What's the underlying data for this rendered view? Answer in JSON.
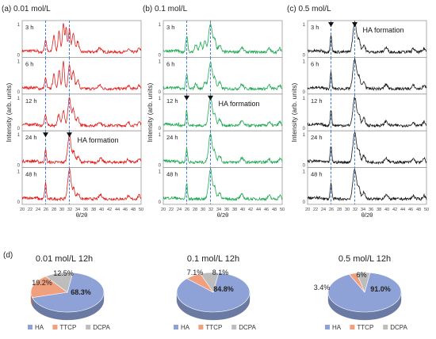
{
  "chart_data": [
    {
      "type": "line",
      "panel_label": "(a) 0.01 mol/L",
      "color": "#e02020",
      "xlabel": "θ/2θ",
      "ylabel": "Intensity (arb. units)",
      "xlim": [
        20,
        50
      ],
      "x_ticks": [
        "20",
        "22",
        "24",
        "26",
        "28",
        "30",
        "32",
        "34",
        "36",
        "38",
        "40",
        "42",
        "44",
        "46",
        "48",
        "50"
      ],
      "y_ticks": [
        "0",
        "1"
      ],
      "ref_lines": [
        25.9,
        31.9
      ],
      "traces": [
        {
          "label": "3 h",
          "peaks": [
            [
              25.9,
              0.35,
              0.25
            ],
            [
              28.0,
              0.45,
              0.3
            ],
            [
              29.3,
              0.6,
              0.25
            ],
            [
              30.4,
              0.85,
              0.25
            ],
            [
              31.1,
              0.7,
              0.2
            ],
            [
              31.9,
              0.65,
              0.25
            ],
            [
              32.9,
              0.55,
              0.3
            ],
            [
              34.0,
              0.3,
              0.3
            ],
            [
              39.5,
              0.12,
              0.4
            ],
            [
              46.8,
              0.08,
              0.3
            ],
            [
              49.5,
              0.1,
              0.3
            ]
          ]
        },
        {
          "label": "6 h",
          "peaks": [
            [
              25.9,
              0.3,
              0.25
            ],
            [
              28.0,
              0.4,
              0.3
            ],
            [
              29.3,
              0.55,
              0.25
            ],
            [
              30.4,
              0.75,
              0.25
            ],
            [
              31.9,
              0.7,
              0.3
            ],
            [
              32.9,
              0.5,
              0.3
            ],
            [
              34.0,
              0.25,
              0.3
            ],
            [
              39.5,
              0.1,
              0.4
            ],
            [
              46.8,
              0.08,
              0.3
            ],
            [
              49.5,
              0.1,
              0.3
            ]
          ]
        },
        {
          "label": "12 h",
          "peaks": [
            [
              25.9,
              0.3,
              0.25
            ],
            [
              29.2,
              0.3,
              0.3
            ],
            [
              30.4,
              0.45,
              0.3
            ],
            [
              31.9,
              0.8,
              0.35
            ],
            [
              32.9,
              0.45,
              0.3
            ],
            [
              34.0,
              0.22,
              0.35
            ],
            [
              39.5,
              0.1,
              0.4
            ],
            [
              46.8,
              0.08,
              0.3
            ],
            [
              49.5,
              0.1,
              0.3
            ]
          ]
        },
        {
          "label": "24 h",
          "peaks": [
            [
              25.9,
              0.35,
              0.2
            ],
            [
              31.9,
              0.8,
              0.4
            ],
            [
              33.0,
              0.3,
              0.3
            ],
            [
              34.1,
              0.15,
              0.35
            ],
            [
              39.8,
              0.1,
              0.4
            ],
            [
              46.7,
              0.08,
              0.3
            ],
            [
              49.5,
              0.09,
              0.3
            ]
          ]
        },
        {
          "label": "48 h",
          "peaks": [
            [
              25.9,
              0.45,
              0.2
            ],
            [
              31.9,
              0.85,
              0.4
            ],
            [
              33.0,
              0.3,
              0.3
            ],
            [
              34.1,
              0.15,
              0.35
            ],
            [
              39.8,
              0.12,
              0.4
            ],
            [
              46.7,
              0.08,
              0.3
            ],
            [
              49.5,
              0.1,
              0.3
            ]
          ]
        }
      ],
      "annotation": {
        "trace_index": 3,
        "text": "HA formation",
        "markers": [
          25.9,
          31.9
        ]
      }
    },
    {
      "type": "line",
      "panel_label": "(b) 0.1 mol/L",
      "color": "#22aa55",
      "xlabel": "θ/2θ",
      "ylabel": "Intensity (arb. units)",
      "xlim": [
        20,
        50
      ],
      "x_ticks": [
        "20",
        "22",
        "24",
        "26",
        "28",
        "30",
        "32",
        "34",
        "36",
        "38",
        "40",
        "42",
        "44",
        "46",
        "48",
        "50"
      ],
      "y_ticks": [
        "0",
        "1"
      ],
      "ref_lines": [
        25.9,
        31.9
      ],
      "traces": [
        {
          "label": "3 h",
          "peaks": [
            [
              25.9,
              0.45,
              0.25
            ],
            [
              28.2,
              0.2,
              0.3
            ],
            [
              29.4,
              0.25,
              0.3
            ],
            [
              30.5,
              0.3,
              0.3
            ],
            [
              31.9,
              0.8,
              0.45
            ],
            [
              33.0,
              0.35,
              0.3
            ],
            [
              34.2,
              0.2,
              0.35
            ],
            [
              39.8,
              0.12,
              0.4
            ],
            [
              46.7,
              0.1,
              0.3
            ],
            [
              49.4,
              0.1,
              0.3
            ]
          ]
        },
        {
          "label": "6 h",
          "peaks": [
            [
              25.9,
              0.4,
              0.25
            ],
            [
              28.2,
              0.15,
              0.3
            ],
            [
              30.5,
              0.2,
              0.3
            ],
            [
              31.9,
              0.75,
              0.45
            ],
            [
              33.0,
              0.3,
              0.3
            ],
            [
              34.2,
              0.18,
              0.35
            ],
            [
              39.8,
              0.12,
              0.4
            ],
            [
              46.7,
              0.1,
              0.3
            ],
            [
              49.4,
              0.1,
              0.3
            ]
          ]
        },
        {
          "label": "12 h",
          "peaks": [
            [
              25.9,
              0.45,
              0.2
            ],
            [
              31.9,
              0.8,
              0.45
            ],
            [
              33.0,
              0.3,
              0.3
            ],
            [
              34.2,
              0.18,
              0.35
            ],
            [
              39.8,
              0.12,
              0.4
            ],
            [
              46.7,
              0.1,
              0.3
            ],
            [
              49.4,
              0.1,
              0.3
            ]
          ]
        },
        {
          "label": "24 h",
          "peaks": [
            [
              25.9,
              0.4,
              0.2
            ],
            [
              31.9,
              0.8,
              0.45
            ],
            [
              33.0,
              0.3,
              0.3
            ],
            [
              34.2,
              0.18,
              0.35
            ],
            [
              39.8,
              0.12,
              0.4
            ],
            [
              46.7,
              0.1,
              0.3
            ],
            [
              49.4,
              0.1,
              0.3
            ]
          ]
        },
        {
          "label": "48 h",
          "peaks": [
            [
              25.9,
              0.45,
              0.2
            ],
            [
              31.9,
              0.85,
              0.45
            ],
            [
              33.0,
              0.3,
              0.3
            ],
            [
              34.2,
              0.18,
              0.35
            ],
            [
              39.8,
              0.12,
              0.4
            ],
            [
              46.7,
              0.1,
              0.3
            ],
            [
              49.4,
              0.1,
              0.3
            ]
          ]
        }
      ],
      "annotation": {
        "trace_index": 2,
        "text": "HA formation",
        "markers": [
          25.9,
          31.9
        ]
      }
    },
    {
      "type": "line",
      "panel_label": "(c) 0.5 mol/L",
      "color": "#1a1a1a",
      "xlabel": "θ/2θ",
      "ylabel": "Intensity (arb. units)",
      "xlim": [
        20,
        50
      ],
      "x_ticks": [
        "20",
        "22",
        "24",
        "26",
        "28",
        "30",
        "32",
        "34",
        "36",
        "38",
        "40",
        "42",
        "44",
        "46",
        "48",
        "50"
      ],
      "y_ticks": [
        "0",
        "1"
      ],
      "ref_lines": [
        25.9,
        31.9
      ],
      "traces": [
        {
          "label": "3 h",
          "peaks": [
            [
              25.9,
              0.5,
              0.2
            ],
            [
              31.9,
              0.85,
              0.45
            ],
            [
              33.0,
              0.35,
              0.3
            ],
            [
              34.2,
              0.2,
              0.35
            ],
            [
              39.8,
              0.12,
              0.4
            ],
            [
              46.7,
              0.1,
              0.3
            ],
            [
              49.4,
              0.1,
              0.3
            ]
          ]
        },
        {
          "label": "6 h",
          "peaks": [
            [
              25.9,
              0.45,
              0.2
            ],
            [
              31.9,
              0.85,
              0.45
            ],
            [
              33.0,
              0.35,
              0.3
            ],
            [
              34.2,
              0.2,
              0.35
            ],
            [
              39.8,
              0.12,
              0.4
            ],
            [
              46.7,
              0.1,
              0.3
            ],
            [
              49.4,
              0.1,
              0.3
            ]
          ]
        },
        {
          "label": "12 h",
          "peaks": [
            [
              25.9,
              0.45,
              0.2
            ],
            [
              31.9,
              0.8,
              0.45
            ],
            [
              33.0,
              0.3,
              0.3
            ],
            [
              34.2,
              0.2,
              0.35
            ],
            [
              39.8,
              0.12,
              0.4
            ],
            [
              46.7,
              0.1,
              0.3
            ],
            [
              49.4,
              0.1,
              0.3
            ]
          ]
        },
        {
          "label": "24 h",
          "peaks": [
            [
              25.9,
              0.45,
              0.2
            ],
            [
              31.9,
              0.85,
              0.45
            ],
            [
              33.0,
              0.3,
              0.3
            ],
            [
              34.2,
              0.2,
              0.35
            ],
            [
              39.8,
              0.12,
              0.4
            ],
            [
              46.7,
              0.1,
              0.3
            ],
            [
              49.4,
              0.1,
              0.3
            ]
          ]
        },
        {
          "label": "48 h",
          "peaks": [
            [
              25.9,
              0.45,
              0.2
            ],
            [
              31.9,
              0.85,
              0.45
            ],
            [
              33.0,
              0.3,
              0.3
            ],
            [
              34.2,
              0.2,
              0.35
            ],
            [
              39.8,
              0.12,
              0.4
            ],
            [
              46.7,
              0.1,
              0.3
            ],
            [
              49.4,
              0.1,
              0.3
            ]
          ]
        }
      ],
      "annotation": {
        "trace_index": 0,
        "text": "HA formation",
        "markers": [
          25.9,
          31.9
        ]
      }
    },
    {
      "type": "pie",
      "panel_label": "(d)",
      "title": "0.01 mol/L 12h",
      "slices": [
        {
          "name": "HA",
          "value": 68.3,
          "label": "68.3%",
          "color": "#8ea2d8"
        },
        {
          "name": "TTCP",
          "value": 19.2,
          "label": "19.2%",
          "color": "#f0a07e"
        },
        {
          "name": "DCPA",
          "value": 12.5,
          "label": "12.5%",
          "color": "#bdbdbd"
        }
      ]
    },
    {
      "type": "pie",
      "title": "0.1 mol/L 12h",
      "slices": [
        {
          "name": "HA",
          "value": 84.8,
          "label": "84.8%",
          "color": "#8ea2d8"
        },
        {
          "name": "TTCP",
          "value": 7.1,
          "label": "7.1%",
          "color": "#f0a07e"
        },
        {
          "name": "DCPA",
          "value": 8.1,
          "label": "8.1%",
          "color": "#bdbdbd"
        }
      ]
    },
    {
      "type": "pie",
      "title": "0.5 mol/L 12h",
      "slices": [
        {
          "name": "HA",
          "value": 91.0,
          "label": "91.0%",
          "color": "#8ea2d8"
        },
        {
          "name": "TTCP",
          "value": 3.4,
          "label": "3.4%",
          "color": "#f0a07e"
        },
        {
          "name": "DCPA",
          "value": 6,
          "label": "6%",
          "color": "#bdbdbd"
        }
      ]
    }
  ]
}
